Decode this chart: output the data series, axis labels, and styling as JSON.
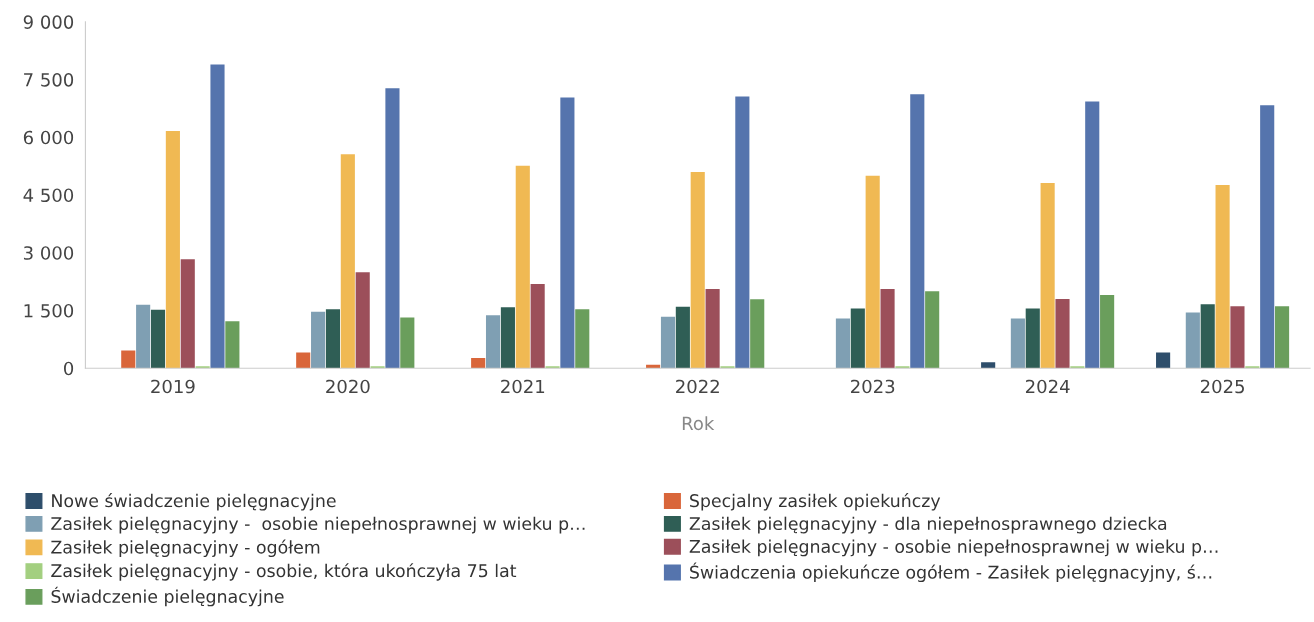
{
  "chart_data": {
    "type": "bar",
    "xlabel": "Rok",
    "categories": [
      "2019",
      "2020",
      "2021",
      "2022",
      "2023",
      "2024",
      "2025"
    ],
    "series": [
      {
        "name": "Nowe świadczenie pielęgnacyjne",
        "color": "#2e4e6b",
        "values": [
          null,
          null,
          null,
          null,
          null,
          155,
          410
        ]
      },
      {
        "name": "Specjalny zasiłek opiekuńczy",
        "color": "#d9663a",
        "values": [
          460,
          410,
          265,
          90,
          null,
          null,
          null
        ]
      },
      {
        "name": "Zasiłek pielęgnacyjny -  osobie niepełnosprawnej w wieku p…",
        "color": "#7f9fb3",
        "values": [
          1650,
          1470,
          1375,
          1340,
          1290,
          1290,
          1450
        ]
      },
      {
        "name": "Zasiłek pielęgnacyjny - dla niepełnosprawnego dziecka",
        "color": "#2f5e55",
        "values": [
          1520,
          1530,
          1585,
          1595,
          1550,
          1550,
          1660
        ]
      },
      {
        "name": "Zasiłek pielęgnacyjny - ogółem",
        "color": "#f0b953",
        "values": [
          6160,
          5560,
          5260,
          5100,
          5000,
          4810,
          4760
        ]
      },
      {
        "name": "Zasiłek pielęgnacyjny - osobie niepełnosprawnej w wieku p…",
        "color": "#9c4f5a",
        "values": [
          2830,
          2490,
          2190,
          2060,
          2060,
          1800,
          1610
        ]
      },
      {
        "name": "Zasiłek pielęgnacyjny - osobie, która ukończyła 75 lat",
        "color": "#a3cf80",
        "values": [
          50,
          50,
          50,
          50,
          50,
          50,
          50
        ]
      },
      {
        "name": "Świadczenia opiekuńcze ogółem - Zasiłek pielęgnacyjny, ś…",
        "color": "#5574ad",
        "values": [
          7890,
          7270,
          7030,
          7060,
          7120,
          6930,
          6830
        ]
      },
      {
        "name": "Świadczenie pielęgnacyjne",
        "color": "#6a9e5c",
        "values": [
          1220,
          1320,
          1530,
          1790,
          2000,
          1900,
          1610
        ]
      }
    ],
    "ylim": [
      0,
      9000
    ],
    "yticks": [
      {
        "value": 0,
        "label": "0"
      },
      {
        "value": 1500,
        "label": "1 500"
      },
      {
        "value": 3000,
        "label": "3 000"
      },
      {
        "value": 4500,
        "label": "4 500"
      },
      {
        "value": 6000,
        "label": "6 000"
      },
      {
        "value": 7500,
        "label": "7 500"
      },
      {
        "value": 9000,
        "label": "9 000"
      }
    ],
    "grid": false,
    "legend": "bottom"
  }
}
